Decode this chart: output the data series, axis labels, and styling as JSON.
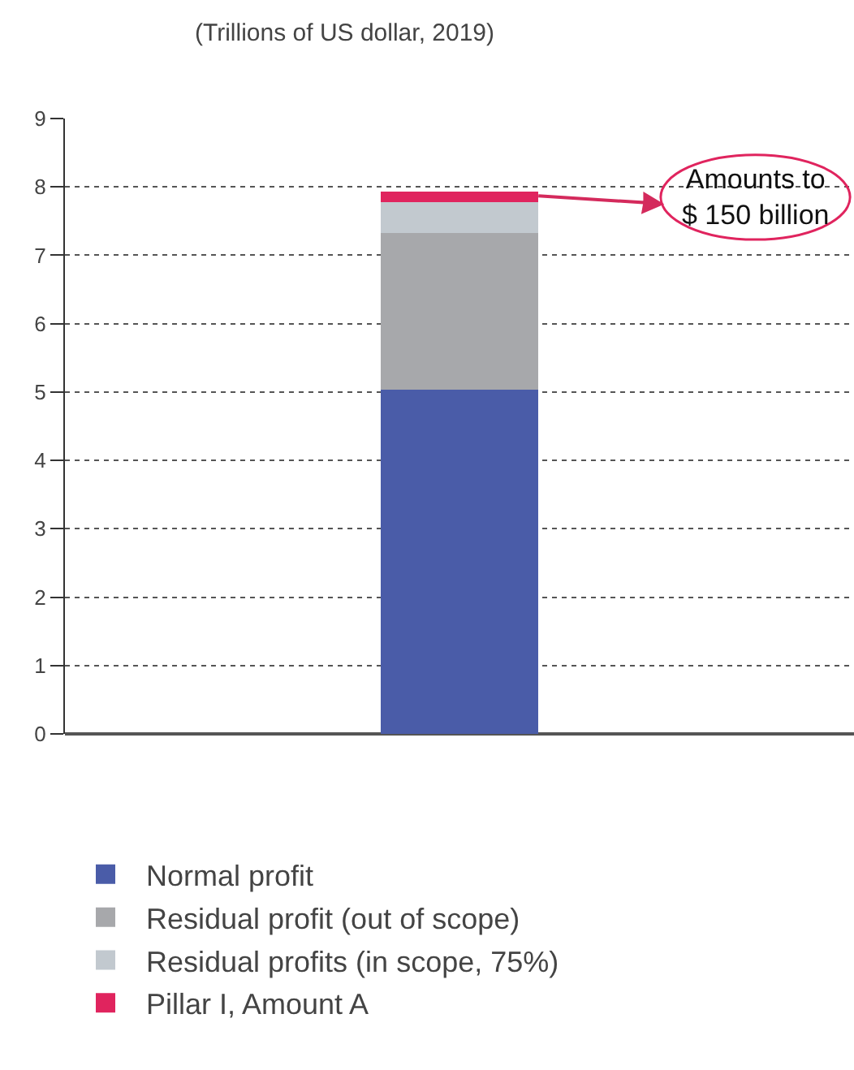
{
  "chart_data": {
    "type": "bar",
    "subtitle": "(Trillions of US dollar, 2019)",
    "categories": [
      null
    ],
    "stacked": true,
    "series": [
      {
        "name": "Normal profit",
        "color": "#4a5ca8",
        "values": [
          5.03
        ]
      },
      {
        "name": "Residual profit (out of scope)",
        "color": "#a7a8ab",
        "values": [
          2.3
        ]
      },
      {
        "name": "Residual profits (in scope, 75%)",
        "color": "#c2c9cf",
        "values": [
          0.45
        ]
      },
      {
        "name": "Pillar I, Amount A",
        "color": "#e0245e",
        "values": [
          0.15
        ]
      }
    ],
    "ylim": [
      0,
      9
    ],
    "yticks": [
      0,
      1,
      2,
      3,
      4,
      5,
      6,
      7,
      8,
      9
    ],
    "grid": "y",
    "legend": "bottom",
    "annotations": [
      "Amounts to\n$ 150 billion"
    ]
  }
}
